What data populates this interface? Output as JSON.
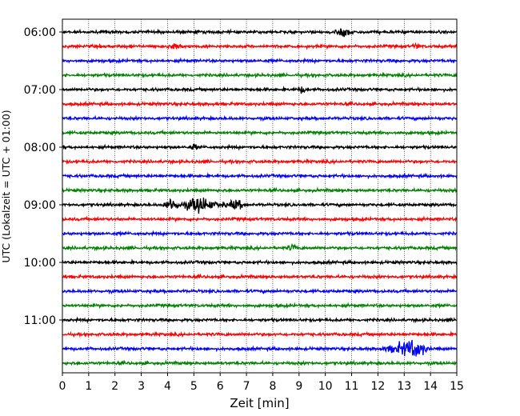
{
  "chart_data": {
    "type": "line",
    "title": "",
    "xlabel": "Zeit  [min]",
    "ylabel": "UTC (Lokalzeit = UTC + 01:00)",
    "xlim": [
      0,
      15
    ],
    "x_ticks": [
      "0",
      "1",
      "2",
      "3",
      "4",
      "5",
      "6",
      "7",
      "8",
      "9",
      "10",
      "11",
      "12",
      "13",
      "14",
      "15"
    ],
    "y_tick_labels": [
      "06:00",
      "07:00",
      "08:00",
      "09:00",
      "10:00",
      "11:00"
    ],
    "grid": "vertical dotted at each minute",
    "trace_minutes": 15,
    "trace_start": "06:00",
    "trace_end": "11:45",
    "trace_colors_cycle": [
      "#000000",
      "#ff0000",
      "#0000ff",
      "#008000"
    ],
    "notable_events": [
      {
        "trace": "06:00",
        "start_min": 10.2,
        "end_min": 11.2,
        "strength": "moderate"
      },
      {
        "trace": "06:15",
        "start_min": 3.9,
        "end_min": 4.7,
        "strength": "small"
      },
      {
        "trace": "06:15",
        "start_min": 13.3,
        "end_min": 13.6,
        "strength": "small"
      },
      {
        "trace": "07:00",
        "start_min": 8.8,
        "end_min": 9.4,
        "strength": "small"
      },
      {
        "trace": "08:00",
        "start_min": 4.8,
        "end_min": 5.2,
        "strength": "small"
      },
      {
        "trace": "09:00",
        "start_min": 3.8,
        "end_min": 7.2,
        "strength": "strong"
      },
      {
        "trace": "09:45",
        "start_min": 8.5,
        "end_min": 9.0,
        "strength": "small"
      },
      {
        "trace": "11:30",
        "start_min": 11.8,
        "end_min": 14.0,
        "strength": "strong"
      }
    ]
  }
}
